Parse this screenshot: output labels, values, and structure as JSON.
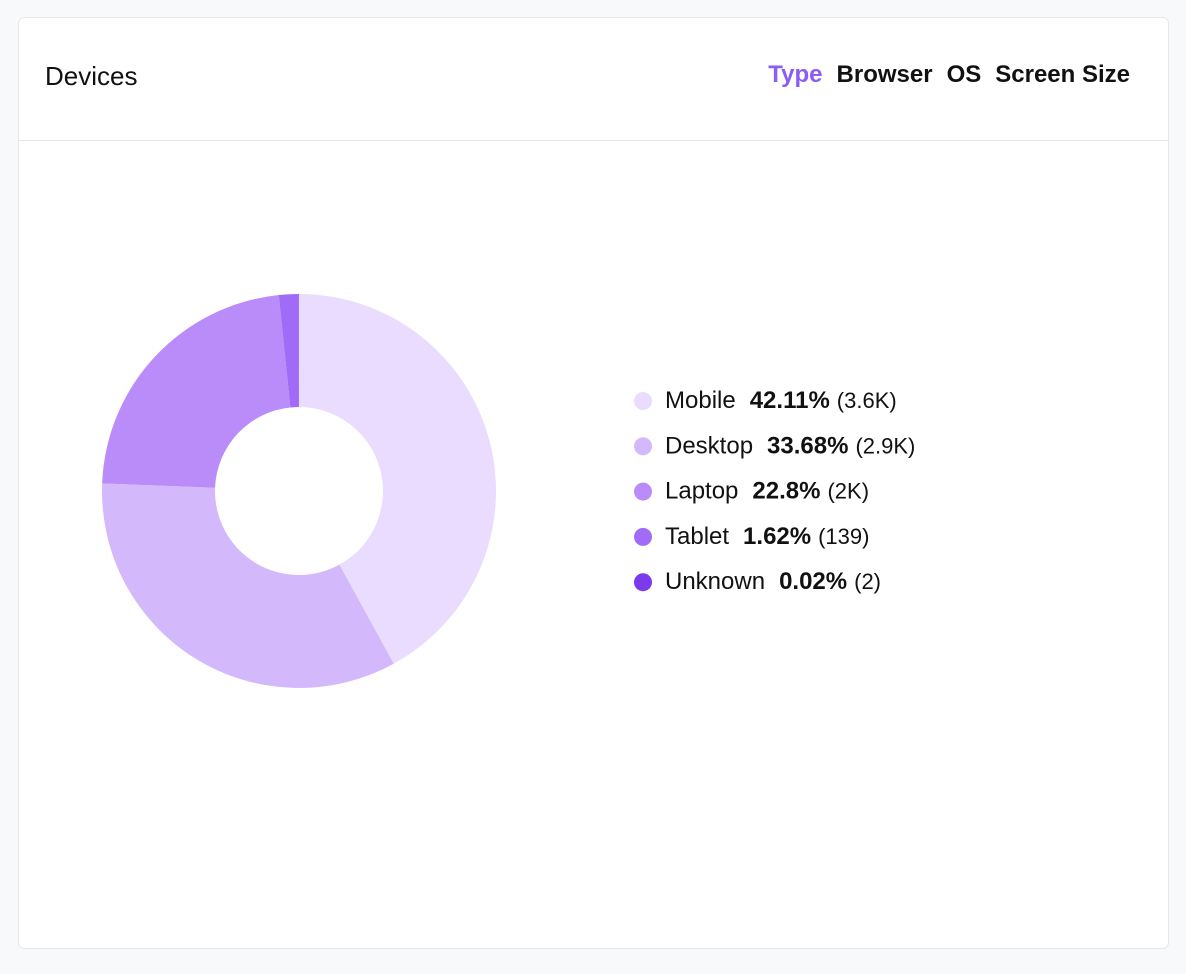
{
  "header": {
    "title": "Devices",
    "tabs": [
      {
        "label": "Type",
        "active": true
      },
      {
        "label": "Browser",
        "active": false
      },
      {
        "label": "OS",
        "active": false
      },
      {
        "label": "Screen Size",
        "active": false
      }
    ]
  },
  "chart_data": {
    "type": "donut",
    "categories": [
      "Mobile",
      "Desktop",
      "Laptop",
      "Tablet",
      "Unknown"
    ],
    "values": [
      42.11,
      33.68,
      22.8,
      1.62,
      0.02
    ],
    "value_labels": [
      "42.11%",
      "33.68%",
      "22.8%",
      "1.62%",
      "0.02%"
    ],
    "counts": [
      3600,
      2900,
      2000,
      139,
      2
    ],
    "count_labels": [
      "(3.6K)",
      "(2.9K)",
      "(2K)",
      "(139)",
      "(2)"
    ],
    "colors": [
      "#e9dcfe",
      "#d4b8fc",
      "#b98cf9",
      "#a06bf6",
      "#7c3aed"
    ]
  }
}
